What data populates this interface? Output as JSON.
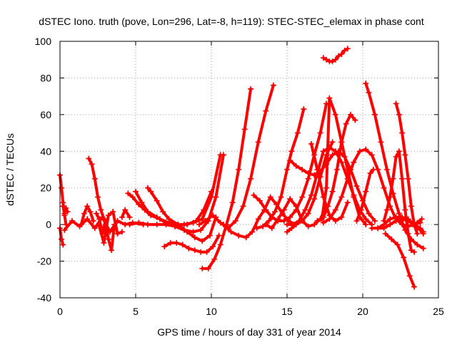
{
  "chart_data": {
    "type": "scatter",
    "title": "dSTEC Iono. truth (pove, Lon=296, Lat=-8, h=119): STEC-STEC_elemax in phase cont",
    "xlabel": "GPS time / hours of day 331 of year 2014",
    "ylabel": "dSTEC  / TECUs",
    "xlim": [
      0,
      25
    ],
    "ylim": [
      -40,
      100
    ],
    "xticks": [
      0,
      5,
      10,
      15,
      20,
      25
    ],
    "yticks": [
      -40,
      -20,
      0,
      20,
      40,
      60,
      80,
      100
    ],
    "grid": true,
    "marker": "+",
    "color": "#ff0000",
    "series": [
      {
        "x": [
          0.0,
          0.1,
          0.2,
          0.3,
          0.4
        ],
        "y": [
          27,
          20,
          12,
          5,
          0
        ]
      },
      {
        "x": [
          0.0,
          0.1,
          0.2
        ],
        "y": [
          -2,
          -8,
          -11
        ]
      },
      {
        "x": [
          0.2,
          0.3,
          0.4,
          0.5
        ],
        "y": [
          10,
          6,
          9,
          7
        ]
      },
      {
        "x": [
          0.3,
          0.8,
          1.3,
          1.8,
          2.3,
          2.8,
          3.3,
          3.8,
          4.3,
          4.8,
          5.5
        ],
        "y": [
          -3,
          2,
          -1,
          3,
          -2,
          4,
          -4,
          2,
          0,
          1,
          0
        ]
      },
      {
        "x": [
          1.4,
          1.6,
          1.8,
          2.0,
          2.2
        ],
        "y": [
          0,
          6,
          10,
          7,
          2
        ]
      },
      {
        "x": [
          1.9,
          2.1,
          2.3,
          2.5,
          2.7,
          2.9
        ],
        "y": [
          36,
          33,
          25,
          15,
          8,
          3
        ]
      },
      {
        "x": [
          2.4,
          2.6,
          2.8,
          3.0,
          3.2,
          3.4,
          3.6
        ],
        "y": [
          6,
          3,
          -5,
          2,
          -8,
          -14,
          0
        ]
      },
      {
        "x": [
          2.6,
          2.9,
          3.2,
          3.5,
          3.8,
          4.1
        ],
        "y": [
          -1,
          -10,
          5,
          7,
          -5,
          -4
        ]
      },
      {
        "x": [
          4.1,
          4.3,
          4.6
        ],
        "y": [
          4,
          8,
          4
        ]
      },
      {
        "x": [
          4.6,
          5.2,
          5.8,
          6.4,
          7.0,
          7.6,
          8.2,
          8.8,
          9.4,
          10.0,
          10.6
        ],
        "y": [
          0,
          1,
          0,
          0,
          0,
          -1,
          0,
          1,
          3,
          15,
          38
        ]
      },
      {
        "x": [
          4.5,
          4.8,
          5.2,
          5.6,
          6.0,
          6.6,
          7.2,
          7.8,
          8.4,
          9.0,
          9.5,
          10.0
        ],
        "y": [
          17,
          15,
          11,
          8,
          5,
          3,
          1,
          0,
          0,
          2,
          8,
          18
        ]
      },
      {
        "x": [
          5.0,
          5.4,
          5.8,
          6.4,
          7.0,
          7.6,
          8.2,
          8.8,
          9.3,
          9.8,
          10.3,
          10.8
        ],
        "y": [
          18,
          12,
          7,
          4,
          1,
          -1,
          -3,
          -4,
          -3,
          2,
          15,
          38
        ]
      },
      {
        "x": [
          5.8,
          6.0,
          6.4,
          6.8,
          7.2,
          7.8,
          8.4,
          8.9,
          9.4,
          9.9,
          10.3
        ],
        "y": [
          20,
          18,
          13,
          7,
          3,
          0,
          -4,
          -7,
          -9,
          -6,
          4
        ]
      },
      {
        "x": [
          6.9,
          7.3,
          7.7,
          8.1,
          8.5,
          8.9,
          9.3,
          9.7,
          10.1,
          10.5
        ],
        "y": [
          -12,
          -10,
          -10,
          -11,
          -13,
          -14,
          -15,
          -15,
          -12,
          -6
        ]
      },
      {
        "x": [
          9.4,
          9.8,
          10.2,
          10.6,
          11.0,
          11.4,
          11.8,
          12.2,
          12.6
        ],
        "y": [
          -24,
          -24,
          -19,
          -11,
          0,
          12,
          30,
          52,
          74
        ]
      },
      {
        "x": [
          9.2,
          9.6,
          10.1,
          10.6,
          11.1,
          11.6,
          12.1,
          12.6,
          13.1,
          13.6,
          14.1
        ],
        "y": [
          0,
          2,
          5,
          1,
          -2,
          2,
          10,
          25,
          45,
          62,
          76
        ]
      },
      {
        "x": [
          10.8,
          11.3,
          11.8,
          12.3,
          12.7,
          13.1,
          13.5,
          13.9,
          14.3,
          14.7,
          15.1,
          15.5
        ],
        "y": [
          0,
          -4,
          -6,
          -7,
          -4,
          3,
          8,
          15,
          11,
          6,
          2,
          0
        ]
      },
      {
        "x": [
          12.8,
          13.2,
          13.6,
          14.0,
          14.4,
          14.8,
          15.2,
          15.6,
          16.0,
          16.4,
          16.8,
          17.2,
          17.6
        ],
        "y": [
          16,
          13,
          8,
          4,
          2,
          2,
          4,
          8,
          15,
          25,
          38,
          50,
          66
        ]
      },
      {
        "x": [
          13.0,
          13.4,
          13.8,
          14.2,
          14.6,
          15.0,
          15.3,
          15.7,
          16.1
        ],
        "y": [
          -2,
          -1,
          2,
          7,
          15,
          30,
          40,
          50,
          63
        ]
      },
      {
        "x": [
          13.6,
          14.0,
          14.4,
          14.8,
          15.2,
          15.6,
          16.0,
          16.4,
          16.8,
          17.2,
          17.6
        ],
        "y": [
          0,
          -2,
          3,
          8,
          14,
          10,
          2,
          -1,
          0,
          3,
          10
        ]
      },
      {
        "x": [
          15.0,
          15.4,
          15.8,
          16.2,
          16.6,
          17.0,
          17.4,
          17.8,
          18.2,
          18.6,
          19.0,
          19.4,
          19.8,
          20.2,
          20.6
        ],
        "y": [
          0,
          0,
          2,
          8,
          16,
          28,
          40,
          42,
          40,
          34,
          25,
          16,
          8,
          3,
          0
        ]
      },
      {
        "x": [
          15.0,
          15.3,
          15.6,
          16.0,
          16.4,
          16.8,
          17.2,
          17.6,
          18.0
        ],
        "y": [
          -4,
          -2,
          0,
          2,
          6,
          14,
          26,
          38,
          45
        ]
      },
      {
        "x": [
          15.2,
          15.6,
          16.0,
          16.4,
          16.8,
          17.2,
          17.6,
          18.0,
          18.4,
          18.8,
          19.2,
          19.6,
          20.0,
          20.4,
          20.8
        ],
        "y": [
          35,
          32,
          30,
          28,
          27,
          29,
          33,
          38,
          40,
          37,
          30,
          21,
          13,
          6,
          2
        ]
      },
      {
        "x": [
          16.6,
          17.0,
          17.4,
          17.8,
          18.2,
          18.6,
          19.0
        ],
        "y": [
          44,
          30,
          15,
          5,
          2,
          4,
          12
        ]
      },
      {
        "x": [
          17.0,
          17.3,
          17.6,
          17.8,
          18.2,
          18.6,
          19.0,
          19.4,
          19.8,
          20.2
        ],
        "y": [
          2,
          3,
          20,
          69,
          60,
          45,
          30,
          15,
          4,
          0
        ]
      },
      {
        "x": [
          17.4,
          17.8,
          18.2,
          18.6,
          19.0,
          19.4,
          19.8,
          20.2,
          20.6,
          21.0,
          21.4,
          21.8,
          22.2,
          22.6,
          23.0,
          23.4,
          23.8
        ],
        "y": [
          1,
          3,
          8,
          15,
          25,
          34,
          40,
          41,
          38,
          30,
          20,
          10,
          3,
          0,
          -1,
          0,
          1
        ]
      },
      {
        "x": [
          17.4,
          17.7,
          18.0,
          18.3,
          18.6,
          18.9,
          19.2,
          19.5
        ],
        "y": [
          4,
          10,
          18,
          30,
          45,
          55,
          60,
          57
        ]
      },
      {
        "x": [
          17.4,
          17.6,
          17.8,
          18.0,
          18.2,
          18.4,
          18.6,
          18.8,
          19.0
        ],
        "y": [
          91,
          90,
          89,
          89,
          90,
          92,
          93,
          95,
          96
        ]
      },
      {
        "x": [
          20.2,
          20.4,
          20.8,
          21.2,
          21.6,
          22.0,
          22.4,
          22.8,
          23.2,
          23.6,
          24.0
        ],
        "y": [
          77,
          72,
          60,
          45,
          30,
          17,
          6,
          -3,
          -8,
          -11,
          -13
        ]
      },
      {
        "x": [
          19.6,
          19.9,
          20.2,
          20.5,
          20.7
        ],
        "y": [
          2,
          8,
          18,
          28,
          30
        ]
      },
      {
        "x": [
          20.6,
          21.0,
          21.4,
          21.8,
          22.2,
          22.6,
          23.0,
          23.4,
          23.8,
          24.0
        ],
        "y": [
          -2,
          -2,
          0,
          3,
          4,
          4,
          3,
          0,
          -2,
          -4
        ]
      },
      {
        "x": [
          21.4,
          21.6,
          21.8,
          22.0,
          22.2,
          22.4,
          22.6,
          22.8,
          23.0,
          23.2,
          23.4
        ],
        "y": [
          2,
          8,
          15,
          25,
          37,
          40,
          25,
          8,
          -5,
          -14,
          -15
        ]
      },
      {
        "x": [
          21.0,
          21.4,
          21.8,
          22.2,
          22.6,
          23.0,
          23.4,
          23.8,
          24.0
        ],
        "y": [
          -2,
          -2,
          0,
          2,
          3,
          2,
          0,
          -3,
          -5
        ]
      },
      {
        "x": [
          22.2,
          22.4,
          22.6,
          22.8,
          23.0,
          23.2,
          23.4,
          23.6
        ],
        "y": [
          66,
          60,
          50,
          38,
          25,
          10,
          0,
          -5
        ]
      },
      {
        "x": [
          21.5,
          21.9,
          22.3,
          22.7,
          23.1,
          23.4
        ],
        "y": [
          -5,
          -8,
          -11,
          -18,
          -28,
          -34
        ]
      },
      {
        "x": [
          23.0,
          23.3,
          23.6,
          23.9
        ],
        "y": [
          -1,
          0,
          1,
          3
        ]
      }
    ]
  }
}
